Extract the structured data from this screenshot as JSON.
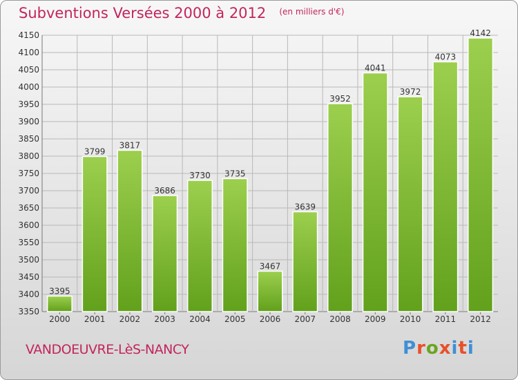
{
  "header": {
    "title": "Subventions Versées 2000 à 2012",
    "unit": "(en milliers d'€)"
  },
  "footer": {
    "commune": "VANDOEUVRE-LèS-NANCY",
    "brand": {
      "text": "Proxiti",
      "colors": [
        "#3f8fd6",
        "#e8502a",
        "#6aa522",
        "#e8502a",
        "#3f8fd6",
        "#e8502a",
        "#3f8fd6"
      ]
    }
  },
  "chart_data": {
    "type": "bar",
    "categories": [
      "2000",
      "2001",
      "2002",
      "2003",
      "2004",
      "2005",
      "2006",
      "2007",
      "2008",
      "2009",
      "2010",
      "2011",
      "2012"
    ],
    "values": [
      3395,
      3799,
      3817,
      3686,
      3730,
      3735,
      3467,
      3639,
      3952,
      4041,
      3972,
      4073,
      4142
    ],
    "ylim": [
      3350,
      4150
    ],
    "yticks": [
      3350,
      3400,
      3450,
      3500,
      3550,
      3600,
      3650,
      3700,
      3750,
      3800,
      3850,
      3900,
      3950,
      4000,
      4050,
      4100,
      4150
    ],
    "grid": true,
    "colors": {
      "bar_top": "#9ccf4e",
      "bar_bottom": "#62a11c",
      "grid": "#b8b8b8",
      "text": "#333333"
    }
  }
}
